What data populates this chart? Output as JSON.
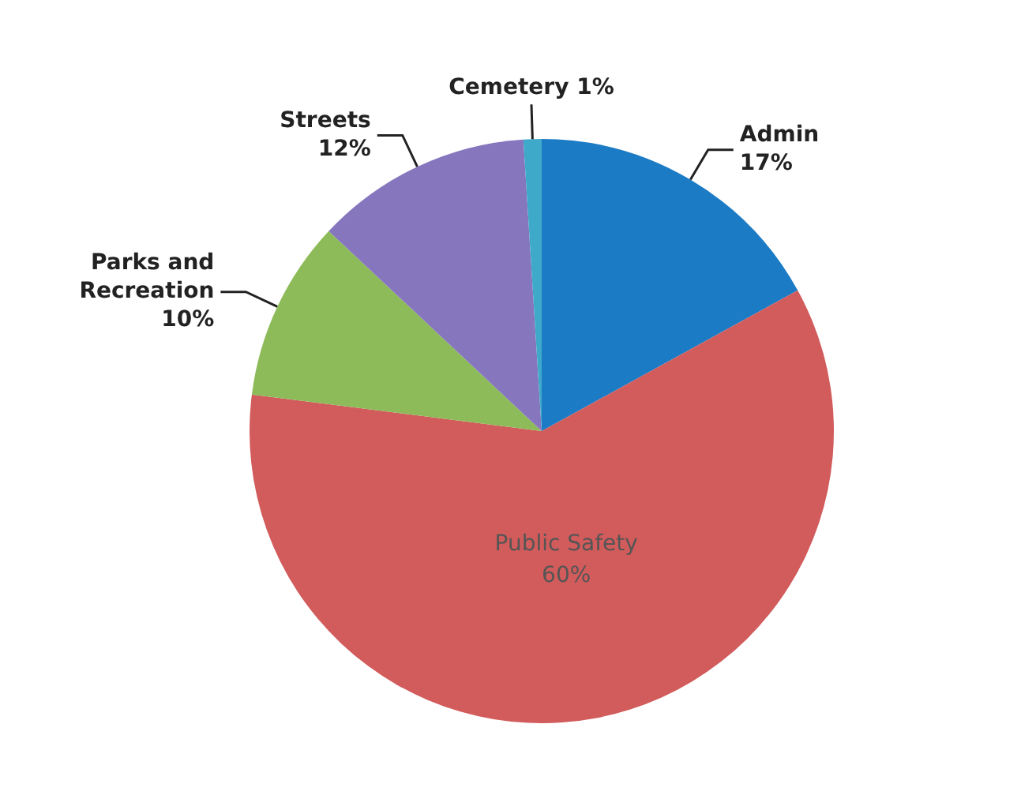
{
  "chart_data": {
    "type": "pie",
    "categories": [
      "Admin",
      "Public Safety",
      "Parks and Recreation",
      "Streets",
      "Cemetery"
    ],
    "values": [
      17,
      60,
      10,
      12,
      1
    ],
    "colors": [
      "#1b7bc4",
      "#d25b5b",
      "#8dbb5a",
      "#8676bd",
      "#3fa9c9"
    ],
    "value_labels": [
      "17%",
      "60%",
      "10%",
      "12%",
      "1%"
    ],
    "legend": false
  }
}
